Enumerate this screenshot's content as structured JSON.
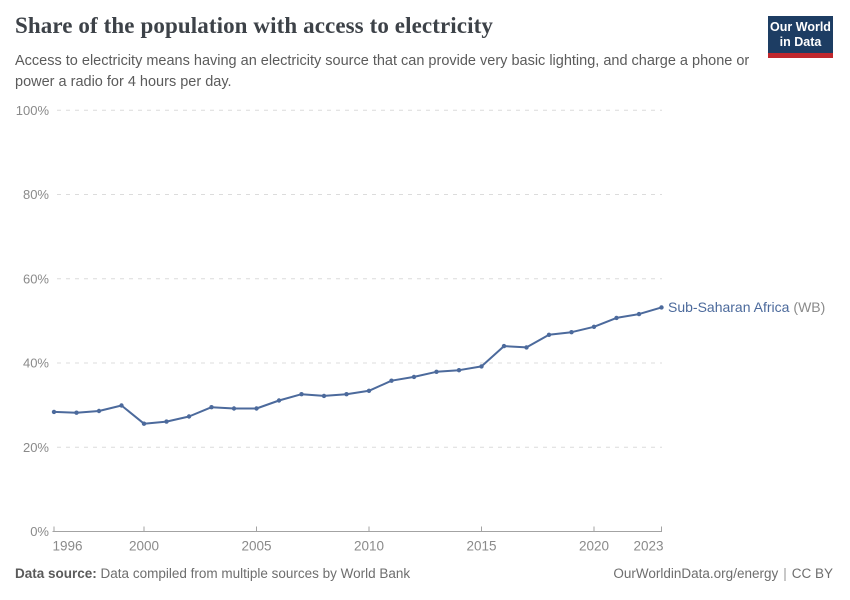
{
  "header": {
    "title": "Share of the population with access to electricity",
    "subtitle": "Access to electricity means having an electricity source that can provide very basic lighting, and charge a phone or power a radio for 4 hours per day."
  },
  "logo": {
    "line1": "Our World",
    "line2": "in Data",
    "background": "#1d3d63",
    "accent": "#c0272d"
  },
  "chart_data": {
    "type": "line",
    "title": "Share of the population with access to electricity",
    "xlabel": "",
    "ylabel": "",
    "xlim": [
      1996,
      2023
    ],
    "ylim": [
      0,
      100
    ],
    "grid": "horizontal-dashed",
    "legend_position": "end-of-line",
    "x": [
      1996,
      1997,
      1998,
      1999,
      2000,
      2001,
      2002,
      2003,
      2004,
      2005,
      2006,
      2007,
      2008,
      2009,
      2010,
      2011,
      2012,
      2013,
      2014,
      2015,
      2016,
      2017,
      2018,
      2019,
      2020,
      2021,
      2022,
      2023
    ],
    "series": [
      {
        "name": "Sub-Saharan Africa",
        "label_suffix": "(WB)",
        "color": "#4c6a9c",
        "values": [
          28.4,
          28.2,
          28.6,
          29.9,
          25.6,
          26.1,
          27.3,
          29.5,
          29.2,
          29.2,
          31.1,
          32.6,
          32.2,
          32.6,
          33.4,
          35.8,
          36.7,
          37.9,
          38.3,
          39.2,
          44.0,
          43.7,
          46.7,
          47.3,
          48.6,
          50.7,
          51.6,
          53.2
        ]
      }
    ],
    "xtick_values": [
      1996,
      2000,
      2005,
      2010,
      2015,
      2020,
      2023
    ],
    "xtick_labels": [
      "1996",
      "2000",
      "2005",
      "2010",
      "2015",
      "2020",
      "2023"
    ],
    "ytick_values": [
      0,
      20,
      40,
      60,
      80,
      100
    ],
    "ytick_labels": [
      "0%",
      "20%",
      "40%",
      "60%",
      "80%",
      "100%"
    ],
    "colors": {
      "gridline": "#dcdcdc",
      "axis": "#a3a3a3",
      "tick_label": "#8a8a8a",
      "legend_suffix": "#8a8a8a"
    }
  },
  "footer": {
    "source_label": "Data source:",
    "source_text": "Data compiled from multiple sources by World Bank",
    "site": "OurWorldinData.org/energy",
    "separator": "|",
    "license": "CC BY"
  }
}
